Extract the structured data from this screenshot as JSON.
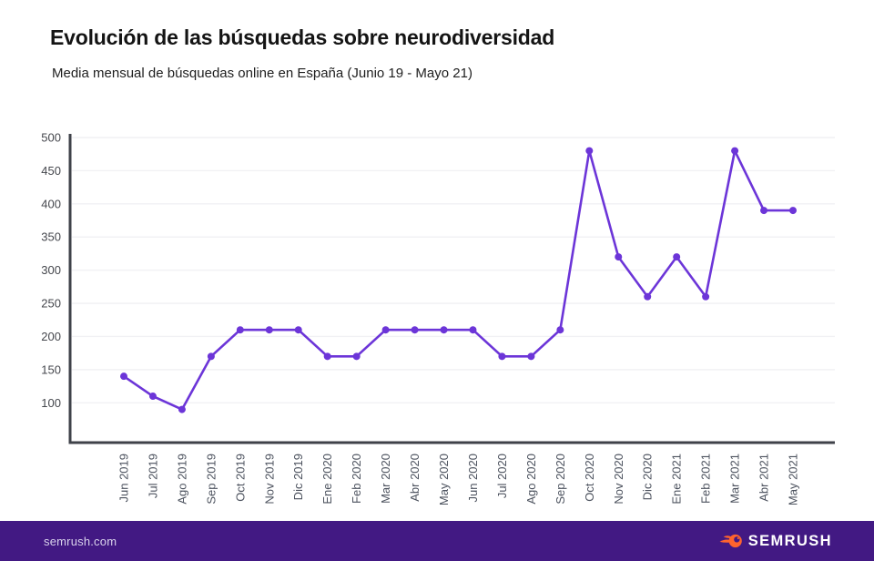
{
  "header": {
    "title": "Evolución de las búsquedas sobre neurodiversidad",
    "subtitle": "Media mensual de búsquedas online en España (Junio 19 - Mayo 21)"
  },
  "chart_data": {
    "type": "line",
    "title": "Evolución de las búsquedas sobre neurodiversidad",
    "subtitle": "Media mensual de búsquedas online en España (Junio 19 - Mayo 21)",
    "xlabel": "",
    "ylabel": "",
    "categories": [
      "Jun 2019",
      "Jul 2019",
      "Ago 2019",
      "Sep 2019",
      "Oct 2019",
      "Nov 2019",
      "Dic 2019",
      "Ene 2020",
      "Feb 2020",
      "Mar 2020",
      "Abr 2020",
      "May 2020",
      "Jun 2020",
      "Jul 2020",
      "Ago 2020",
      "Sep 2020",
      "Oct 2020",
      "Nov 2020",
      "Dic 2020",
      "Ene 2021",
      "Feb 2021",
      "Mar 2021",
      "Abr 2021",
      "May 2021"
    ],
    "values": [
      140,
      110,
      90,
      170,
      210,
      210,
      210,
      170,
      170,
      210,
      210,
      210,
      210,
      170,
      170,
      210,
      480,
      320,
      260,
      320,
      260,
      480,
      390,
      390
    ],
    "yticks": [
      100,
      150,
      200,
      250,
      300,
      350,
      400,
      450,
      500
    ],
    "ylim": [
      40,
      500
    ],
    "grid": "horizontal",
    "legend": "none",
    "marker": "circle"
  },
  "footer": {
    "website": "semrush.com",
    "logo_text": "SEMRUSH"
  },
  "colors": {
    "line": "#6c35d8",
    "grid": "#f1f1f4",
    "axis": "#3f4249",
    "y_tick_label": "#45474d",
    "x_tick_label": "#4c525e",
    "footer_background": "#421983",
    "logo_orange": "#ff642d"
  }
}
